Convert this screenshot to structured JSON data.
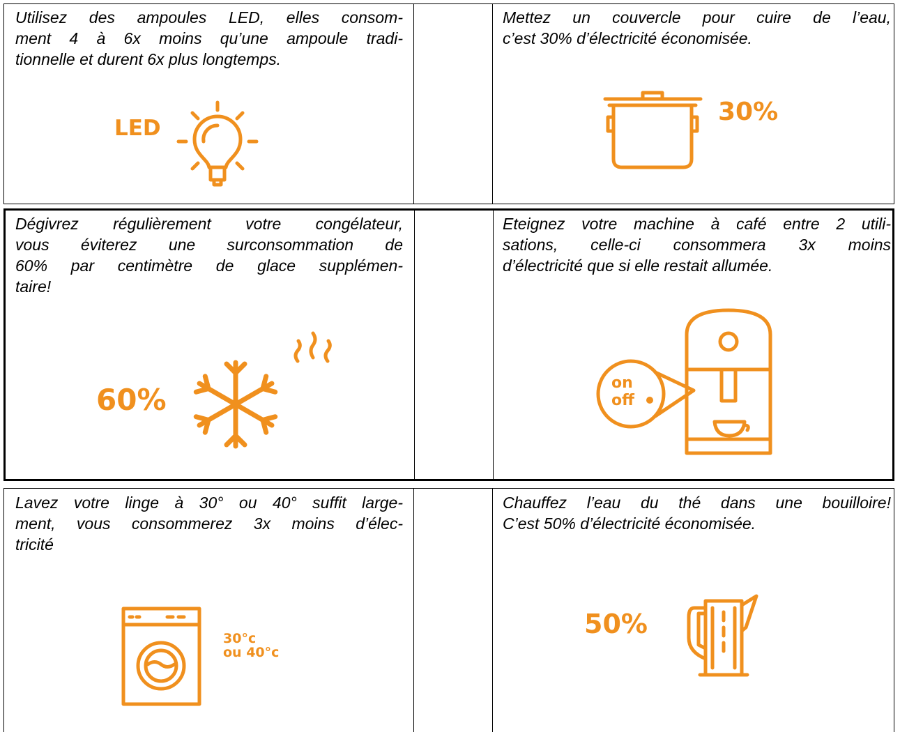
{
  "tips": [
    {
      "lines": [
        "Utilisez des ampoules LED, elles consom-",
        "ment 4 à 6x moins qu’une ampoule tradi-",
        "tionnelle et durent 6x plus longtemps."
      ],
      "labels": [
        "LED"
      ]
    },
    {
      "lines": [
        "Mettez un couvercle pour cuire de l’eau,",
        "c’est 30% d’électricité économisée."
      ],
      "labels": [
        "30%"
      ]
    },
    {
      "lines": [
        "Dégivrez régulièrement votre congélateur,",
        "vous éviterez une surconsommation de",
        "60% par centimètre de glace supplémen-",
        "taire!"
      ],
      "labels": [
        "60%"
      ]
    },
    {
      "lines": [
        "Eteignez votre machine à café entre 2 utili-",
        "sations, celle-ci consommera 3x moins",
        "d’électricité que si elle restait allumée."
      ],
      "labels": [
        "on",
        "off"
      ]
    },
    {
      "lines": [
        "Lavez votre linge à 30° ou 40° suffit large-",
        "ment, vous consommerez 3x moins d’élec-",
        "tricité"
      ],
      "labels": [
        "30°c",
        "ou 40°c"
      ]
    },
    {
      "lines": [
        "Chauffez l’eau du thé dans une bouilloire!",
        "C’est 50% d’électricité économisée."
      ],
      "labels": [
        "50%"
      ]
    }
  ]
}
